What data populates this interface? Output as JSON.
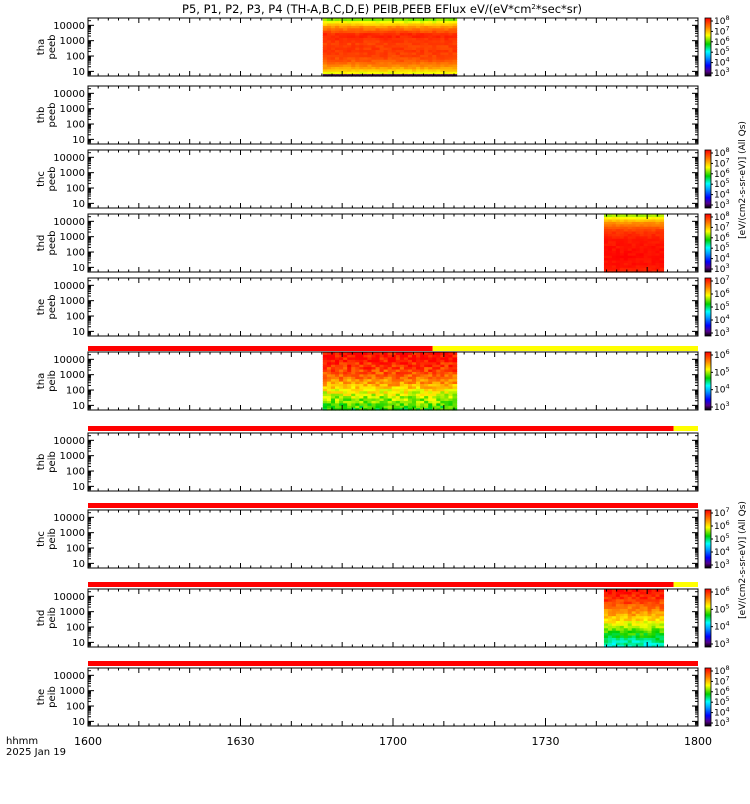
{
  "chart_data": {
    "type": "heatmap",
    "title": "P5, P1, P2, P3, P4 (TH-A,B,C,D,E) PEIB,PEEB EFlux eV/(eV*cm2*sec*sr)",
    "title_parts": {
      "prefix": "P5, P1, P2, P3, P4 (TH-A,B,C,D,E) PEIB,PEEB EFlux eV/(eV*cm",
      "sup": "2",
      "suffix": "*sec*sr)"
    },
    "xlabel": "hhmm",
    "date_label": "2025 Jan 19",
    "x_ticks": [
      "1600",
      "1630",
      "1700",
      "1730",
      "1800"
    ],
    "x_tick_minutes": [
      0,
      30,
      60,
      90,
      120
    ],
    "x_range_minutes": [
      0,
      120
    ],
    "y_scale": "log",
    "y_ticks": [
      "10000",
      "1000",
      "100",
      "10"
    ],
    "y_tick_values": [
      10000,
      1000,
      100,
      10
    ],
    "ylim": [
      5,
      30000
    ],
    "colorbar_title_electron": "[eV/(cm2-s-sr-eV)] (All Qs)",
    "colorbar_title_ion": "[eV/(cm2-s-sr-eV)] (All Qs)",
    "panels": [
      {
        "probe": "tha",
        "instrument": "peeb",
        "label_top": "tha",
        "label_bottom": "peeb",
        "data": {
          "start": 46.2,
          "end": 72.5,
          "profile": [
            0.62,
            0.8,
            0.9,
            0.93,
            0.92,
            0.96,
            0.82,
            0.6
          ],
          "noise": 0.02,
          "lowbin_dark": true
        },
        "colorbar": {
          "ticks": [
            "10^8",
            "10^7",
            "10^6",
            "10^5",
            "10^4",
            "10^3"
          ]
        }
      },
      {
        "probe": "thb",
        "instrument": "peeb",
        "label_top": "thb",
        "label_bottom": "peeb",
        "data": null,
        "colorbar": null
      },
      {
        "probe": "thc",
        "instrument": "peeb",
        "label_top": "thc",
        "label_bottom": "peeb",
        "data": null,
        "colorbar": {
          "ticks": [
            "10^8",
            "10^7",
            "10^6",
            "10^5",
            "10^4",
            "10^3"
          ]
        }
      },
      {
        "probe": "thd",
        "instrument": "peeb",
        "label_top": "thd",
        "label_bottom": "peeb",
        "data": {
          "start": 101.5,
          "end": 113.2,
          "profile": [
            0.96,
            0.98,
            0.99,
            0.98,
            0.97,
            0.93,
            0.82,
            0.62
          ],
          "noise": 0.015,
          "lowbin_dark": false
        },
        "colorbar": {
          "ticks": [
            "10^8",
            "10^7",
            "10^6",
            "10^5",
            "10^4",
            "10^3"
          ]
        }
      },
      {
        "probe": "the",
        "instrument": "peeb",
        "label_top": "the",
        "label_bottom": "peeb",
        "data": null,
        "colorbar": {
          "ticks": [
            "10^7",
            "10^6",
            "10^5",
            "10^4",
            "10^3"
          ]
        }
      },
      {
        "probe": "tha",
        "instrument": "peib",
        "label_top": "tha",
        "label_bottom": "peib",
        "data": {
          "start": 46.2,
          "end": 72.5,
          "profile": [
            0.55,
            0.62,
            0.68,
            0.78,
            0.86,
            0.92,
            0.97,
            0.99
          ],
          "noise": 0.07,
          "lowbin_dark": false
        },
        "colorbar": {
          "ticks": [
            "10^6",
            "10^5",
            "10^4",
            "10^3"
          ]
        }
      },
      {
        "probe": "thb",
        "instrument": "peib",
        "label_top": "thb",
        "label_bottom": "peib",
        "data": null,
        "colorbar": null
      },
      {
        "probe": "thc",
        "instrument": "peib",
        "label_top": "thc",
        "label_bottom": "peib",
        "data": null,
        "colorbar": {
          "ticks": [
            "10^7",
            "10^6",
            "10^5",
            "10^4",
            "10^3"
          ]
        }
      },
      {
        "probe": "thd",
        "instrument": "peib",
        "label_top": "thd",
        "label_bottom": "peib",
        "data": {
          "start": 101.5,
          "end": 113.2,
          "profile": [
            0.42,
            0.5,
            0.6,
            0.7,
            0.8,
            0.88,
            0.95,
            0.99
          ],
          "noise": 0.05,
          "lowbin_dark": false
        },
        "colorbar": {
          "ticks": [
            "10^6",
            "10^5",
            "10^4",
            "10^3"
          ]
        }
      },
      {
        "probe": "the",
        "instrument": "peib",
        "label_top": "the",
        "label_bottom": "peib",
        "data": null,
        "colorbar": {
          "ticks": [
            "10^8",
            "10^7",
            "10^6",
            "10^5",
            "10^4",
            "10^3"
          ]
        }
      }
    ],
    "status_bars": [
      {
        "after_panel": 4,
        "segments": [
          {
            "from": 0,
            "to": 67.8,
            "color": "#ff0000"
          },
          {
            "from": 67.8,
            "to": 120,
            "color": "#ffff00"
          }
        ]
      },
      {
        "after_panel": 5,
        "segments": [
          {
            "from": 0,
            "to": 115.2,
            "color": "#ff0000"
          },
          {
            "from": 115.2,
            "to": 120,
            "color": "#ffff00"
          }
        ]
      },
      {
        "after_panel": 6,
        "segments": [
          {
            "from": 0,
            "to": 120,
            "color": "#ff0000"
          }
        ]
      },
      {
        "after_panel": 7,
        "segments": [
          {
            "from": 0,
            "to": 115.2,
            "color": "#ff0000"
          },
          {
            "from": 115.2,
            "to": 120,
            "color": "#ffff00"
          }
        ]
      },
      {
        "after_panel": 8,
        "segments": [
          {
            "from": 0,
            "to": 120,
            "color": "#ff0000"
          }
        ]
      }
    ]
  }
}
